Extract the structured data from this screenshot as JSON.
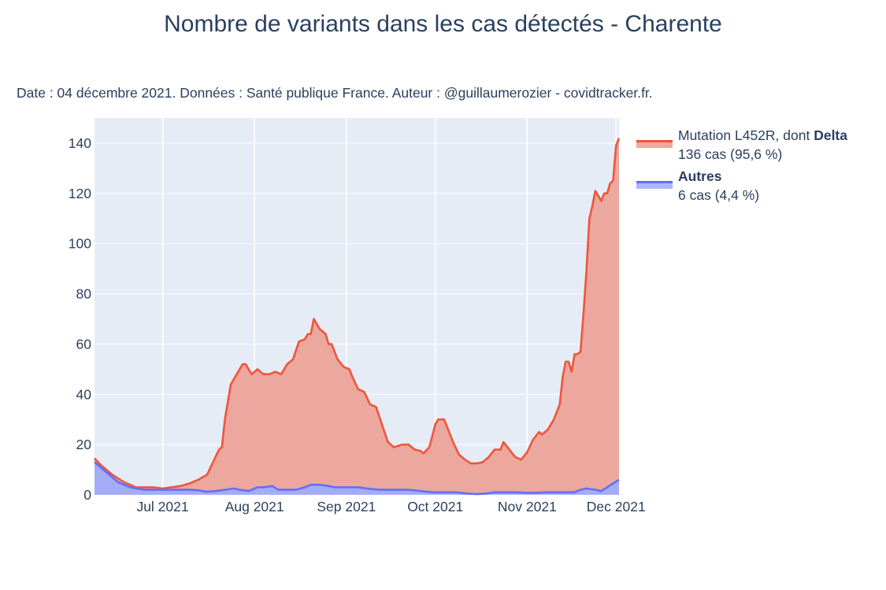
{
  "chart_data": {
    "type": "area",
    "title": "Nombre de variants dans les cas détectés - Charente",
    "subtitle": "Date : 04 décembre 2021. Données : Santé publique France. Auteur : @guillaumerozier - covidtracker.fr.",
    "x_start": "2021-06-08",
    "x_end": "2021-12-02",
    "x_ticks": [
      {
        "date": "2021-07-01",
        "label": "Jul 2021"
      },
      {
        "date": "2021-08-01",
        "label": "Aug 2021"
      },
      {
        "date": "2021-09-01",
        "label": "Sep 2021"
      },
      {
        "date": "2021-10-01",
        "label": "Oct 2021"
      },
      {
        "date": "2021-11-01",
        "label": "Nov 2021"
      },
      {
        "date": "2021-12-01",
        "label": "Dec 2021"
      }
    ],
    "ylim": [
      0,
      150
    ],
    "y_ticks": [
      0,
      20,
      40,
      60,
      80,
      100,
      120,
      140
    ],
    "grid": true,
    "stacked": true,
    "legend_position": "right",
    "series": [
      {
        "name": "Autres",
        "legend_bold": "Autres",
        "legend_detail": "6 cas (4,4 %)",
        "line_color": "#636efa",
        "fill_color": "#a5acf7",
        "points": [
          [
            "2021-06-08",
            13
          ],
          [
            "2021-06-10",
            11
          ],
          [
            "2021-06-12",
            9
          ],
          [
            "2021-06-14",
            7
          ],
          [
            "2021-06-16",
            5
          ],
          [
            "2021-06-18",
            4
          ],
          [
            "2021-06-20",
            3
          ],
          [
            "2021-06-22",
            2.5
          ],
          [
            "2021-06-25",
            2
          ],
          [
            "2021-06-28",
            2
          ],
          [
            "2021-07-01",
            2
          ],
          [
            "2021-07-04",
            2
          ],
          [
            "2021-07-07",
            2
          ],
          [
            "2021-07-10",
            2
          ],
          [
            "2021-07-13",
            1.8
          ],
          [
            "2021-07-16",
            1.2
          ],
          [
            "2021-07-19",
            1.5
          ],
          [
            "2021-07-22",
            2
          ],
          [
            "2021-07-25",
            2.5
          ],
          [
            "2021-07-27",
            2
          ],
          [
            "2021-07-30",
            1.5
          ],
          [
            "2021-08-02",
            3
          ],
          [
            "2021-08-04",
            3
          ],
          [
            "2021-08-07",
            3.5
          ],
          [
            "2021-08-09",
            2
          ],
          [
            "2021-08-12",
            2
          ],
          [
            "2021-08-15",
            2
          ],
          [
            "2021-08-18",
            3
          ],
          [
            "2021-08-20",
            4
          ],
          [
            "2021-08-23",
            4
          ],
          [
            "2021-08-26",
            3.5
          ],
          [
            "2021-08-28",
            3
          ],
          [
            "2021-09-01",
            3
          ],
          [
            "2021-09-05",
            3
          ],
          [
            "2021-09-08",
            2.5
          ],
          [
            "2021-09-12",
            2
          ],
          [
            "2021-09-16",
            2
          ],
          [
            "2021-09-19",
            2
          ],
          [
            "2021-09-22",
            2
          ],
          [
            "2021-09-26",
            1.5
          ],
          [
            "2021-09-30",
            1
          ],
          [
            "2021-10-04",
            1
          ],
          [
            "2021-10-08",
            1
          ],
          [
            "2021-10-12",
            0.5
          ],
          [
            "2021-10-15",
            0.3
          ],
          [
            "2021-10-18",
            0.5
          ],
          [
            "2021-10-21",
            1
          ],
          [
            "2021-10-24",
            1
          ],
          [
            "2021-10-28",
            1
          ],
          [
            "2021-11-01",
            0.8
          ],
          [
            "2021-11-04",
            0.8
          ],
          [
            "2021-11-07",
            1
          ],
          [
            "2021-11-11",
            1
          ],
          [
            "2021-11-14",
            1
          ],
          [
            "2021-11-17",
            1
          ],
          [
            "2021-11-19",
            2
          ],
          [
            "2021-11-21",
            2.5
          ],
          [
            "2021-11-24",
            2
          ],
          [
            "2021-11-26",
            1.5
          ],
          [
            "2021-11-28",
            3
          ],
          [
            "2021-11-30",
            4.5
          ],
          [
            "2021-12-02",
            6
          ]
        ]
      },
      {
        "name": "Mutation L452R, dont Delta",
        "legend_prefix": "Mutation L452R, dont ",
        "legend_bold": "Delta",
        "legend_detail": "136 cas (95,6 %)",
        "line_color": "#ef553b",
        "fill_color": "#eca399",
        "points_total": [
          [
            "2021-06-08",
            14.5
          ],
          [
            "2021-06-10",
            12
          ],
          [
            "2021-06-12",
            10
          ],
          [
            "2021-06-14",
            8
          ],
          [
            "2021-06-16",
            6.5
          ],
          [
            "2021-06-18",
            5
          ],
          [
            "2021-06-20",
            4
          ],
          [
            "2021-06-22",
            3
          ],
          [
            "2021-06-25",
            3
          ],
          [
            "2021-06-28",
            3
          ],
          [
            "2021-07-01",
            2.5
          ],
          [
            "2021-07-04",
            3
          ],
          [
            "2021-07-07",
            3.5
          ],
          [
            "2021-07-10",
            4.5
          ],
          [
            "2021-07-13",
            6
          ],
          [
            "2021-07-16",
            8
          ],
          [
            "2021-07-18",
            13
          ],
          [
            "2021-07-20",
            18
          ],
          [
            "2021-07-21",
            19
          ],
          [
            "2021-07-22",
            30
          ],
          [
            "2021-07-24",
            44
          ],
          [
            "2021-07-26",
            48
          ],
          [
            "2021-07-28",
            52
          ],
          [
            "2021-07-29",
            52
          ],
          [
            "2021-07-31",
            48
          ],
          [
            "2021-08-02",
            50
          ],
          [
            "2021-08-04",
            48
          ],
          [
            "2021-08-06",
            48
          ],
          [
            "2021-08-08",
            49
          ],
          [
            "2021-08-10",
            48
          ],
          [
            "2021-08-12",
            52
          ],
          [
            "2021-08-14",
            54
          ],
          [
            "2021-08-16",
            61
          ],
          [
            "2021-08-18",
            62
          ],
          [
            "2021-08-19",
            64
          ],
          [
            "2021-08-20",
            64
          ],
          [
            "2021-08-21",
            70
          ],
          [
            "2021-08-23",
            66
          ],
          [
            "2021-08-25",
            64
          ],
          [
            "2021-08-26",
            60
          ],
          [
            "2021-08-27",
            60
          ],
          [
            "2021-08-29",
            54
          ],
          [
            "2021-08-31",
            51
          ],
          [
            "2021-09-02",
            50
          ],
          [
            "2021-09-03",
            47
          ],
          [
            "2021-09-05",
            42
          ],
          [
            "2021-09-07",
            41
          ],
          [
            "2021-09-09",
            36
          ],
          [
            "2021-09-11",
            35
          ],
          [
            "2021-09-13",
            28
          ],
          [
            "2021-09-15",
            21
          ],
          [
            "2021-09-17",
            19
          ],
          [
            "2021-09-20",
            20
          ],
          [
            "2021-09-22",
            20
          ],
          [
            "2021-09-24",
            18
          ],
          [
            "2021-09-26",
            17.5
          ],
          [
            "2021-09-27",
            16.5
          ],
          [
            "2021-09-29",
            19
          ],
          [
            "2021-10-01",
            28
          ],
          [
            "2021-10-02",
            30
          ],
          [
            "2021-10-04",
            30
          ],
          [
            "2021-10-05",
            27
          ],
          [
            "2021-10-07",
            21
          ],
          [
            "2021-10-09",
            16
          ],
          [
            "2021-10-11",
            14
          ],
          [
            "2021-10-13",
            12.5
          ],
          [
            "2021-10-15",
            12.5
          ],
          [
            "2021-10-17",
            13
          ],
          [
            "2021-10-19",
            15
          ],
          [
            "2021-10-21",
            18
          ],
          [
            "2021-10-23",
            18
          ],
          [
            "2021-10-24",
            21
          ],
          [
            "2021-10-26",
            18
          ],
          [
            "2021-10-28",
            15
          ],
          [
            "2021-10-30",
            14
          ],
          [
            "2021-11-01",
            17
          ],
          [
            "2021-11-03",
            22
          ],
          [
            "2021-11-05",
            25
          ],
          [
            "2021-11-06",
            24
          ],
          [
            "2021-11-08",
            26
          ],
          [
            "2021-11-10",
            30
          ],
          [
            "2021-11-12",
            36
          ],
          [
            "2021-11-13",
            47
          ],
          [
            "2021-11-14",
            53
          ],
          [
            "2021-11-15",
            53
          ],
          [
            "2021-11-16",
            49
          ],
          [
            "2021-11-17",
            56
          ],
          [
            "2021-11-18",
            56
          ],
          [
            "2021-11-19",
            57
          ],
          [
            "2021-11-20",
            72
          ],
          [
            "2021-11-21",
            89
          ],
          [
            "2021-11-22",
            110
          ],
          [
            "2021-11-23",
            115
          ],
          [
            "2021-11-24",
            121
          ],
          [
            "2021-11-25",
            119
          ],
          [
            "2021-11-26",
            117
          ],
          [
            "2021-11-27",
            120
          ],
          [
            "2021-11-28",
            120
          ],
          [
            "2021-11-29",
            124
          ],
          [
            "2021-11-30",
            125
          ],
          [
            "2021-12-01",
            139
          ],
          [
            "2021-12-02",
            142
          ]
        ]
      }
    ]
  }
}
